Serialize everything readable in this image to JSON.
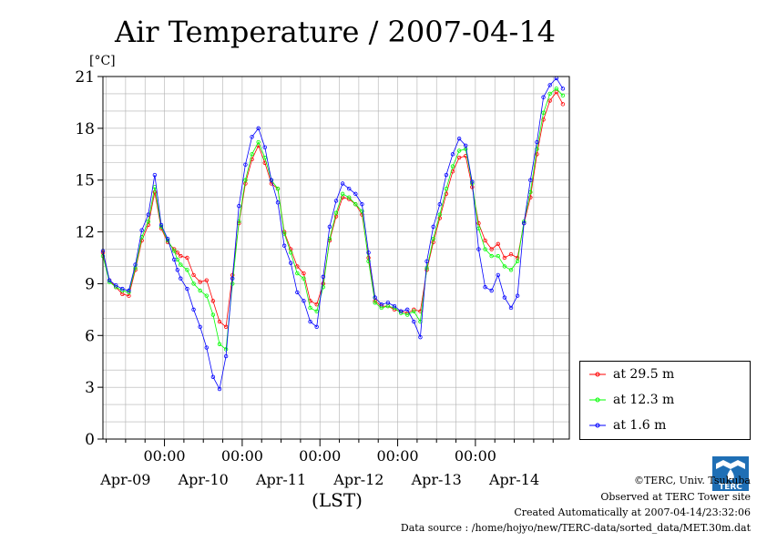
{
  "chart_data": {
    "type": "line",
    "title": "Air Temperature / 2007-04-14",
    "unit_label": "[°C]",
    "xlabel": "(LST)",
    "ylim": [
      0,
      21
    ],
    "yticks": [
      0,
      3,
      6,
      9,
      12,
      15,
      18,
      21
    ],
    "xlim_days": [
      "2007-04-08 05:00",
      "2007-04-14 05:00"
    ],
    "x_time_labels": [
      "00:00",
      "00:00",
      "00:00",
      "00:00",
      "00:00"
    ],
    "x_date_labels": [
      "Apr-09",
      "Apr-10",
      "Apr-11",
      "Apr-12",
      "Apr-13",
      "Apr-14"
    ],
    "grid": true,
    "legend_position": "right",
    "x_unit": "hours since 2007-04-08 05:00",
    "series": [
      {
        "name": "at 29.5 m",
        "color": "#ff0000",
        "x": [
          0,
          2,
          4,
          6,
          8,
          10,
          12,
          14,
          16,
          18,
          20,
          22,
          23,
          24,
          26,
          28,
          30,
          32,
          34,
          36,
          38,
          40,
          42,
          44,
          46,
          48,
          50,
          52,
          54,
          56,
          58,
          60,
          62,
          64,
          66,
          68,
          70,
          72,
          74,
          76,
          78,
          80,
          82,
          84,
          86,
          88,
          90,
          92,
          94,
          96,
          98,
          100,
          102,
          104,
          106,
          108,
          110,
          112,
          114,
          116,
          118,
          120,
          122,
          124,
          126,
          128,
          130,
          132,
          134,
          136,
          138,
          140,
          142
        ],
        "y": [
          10.8,
          9.2,
          8.8,
          8.4,
          8.3,
          9.8,
          11.5,
          12.4,
          14.3,
          12.2,
          11.4,
          11.0,
          10.8,
          10.6,
          10.5,
          9.5,
          9.1,
          9.2,
          8.0,
          6.8,
          6.5,
          9.5,
          12.5,
          14.8,
          16.2,
          17.0,
          16.0,
          14.8,
          14.5,
          12.0,
          11.0,
          10.0,
          9.6,
          8.0,
          7.8,
          9.0,
          11.5,
          12.9,
          14.0,
          13.9,
          13.6,
          13.0,
          10.5,
          8.0,
          7.7,
          7.7,
          7.5,
          7.4,
          7.3,
          7.5,
          7.4,
          9.8,
          11.4,
          12.8,
          14.2,
          15.5,
          16.3,
          16.4,
          14.6,
          12.5,
          11.5,
          11.0,
          11.3,
          10.5,
          10.7,
          10.5,
          12.5,
          14.0,
          16.5,
          18.5,
          19.6,
          20.1,
          19.4
        ]
      },
      {
        "name": "at 12.3 m",
        "color": "#00ff00",
        "x": [
          0,
          2,
          4,
          6,
          8,
          10,
          12,
          14,
          16,
          18,
          20,
          22,
          23,
          24,
          26,
          28,
          30,
          32,
          34,
          36,
          38,
          40,
          42,
          44,
          46,
          48,
          50,
          52,
          54,
          56,
          58,
          60,
          62,
          64,
          66,
          68,
          70,
          72,
          74,
          76,
          78,
          80,
          82,
          84,
          86,
          88,
          90,
          92,
          94,
          96,
          98,
          100,
          102,
          104,
          106,
          108,
          110,
          112,
          114,
          116,
          118,
          120,
          122,
          124,
          126,
          128,
          130,
          132,
          134,
          136,
          138,
          140,
          142
        ],
        "y": [
          10.6,
          9.1,
          8.8,
          8.6,
          8.5,
          9.9,
          11.7,
          12.6,
          14.6,
          12.3,
          11.5,
          10.9,
          10.4,
          10.1,
          9.8,
          9.0,
          8.6,
          8.3,
          7.2,
          5.5,
          5.2,
          9.0,
          12.6,
          15.0,
          16.5,
          17.2,
          16.3,
          15.0,
          14.5,
          11.9,
          10.8,
          9.6,
          9.3,
          7.6,
          7.4,
          8.8,
          11.6,
          13.1,
          14.2,
          14.0,
          13.6,
          13.2,
          10.3,
          7.9,
          7.6,
          7.7,
          7.6,
          7.3,
          7.2,
          7.4,
          6.8,
          9.9,
          11.6,
          13.0,
          14.5,
          15.8,
          16.7,
          16.8,
          14.8,
          12.2,
          11.0,
          10.6,
          10.6,
          10.0,
          9.8,
          10.3,
          12.6,
          14.3,
          16.8,
          18.9,
          20.0,
          20.3,
          19.9
        ]
      },
      {
        "name": "at 1.6 m",
        "color": "#0000ff",
        "x": [
          0,
          2,
          4,
          6,
          8,
          10,
          12,
          14,
          16,
          18,
          20,
          22,
          23,
          24,
          26,
          28,
          30,
          32,
          34,
          36,
          38,
          40,
          42,
          44,
          46,
          48,
          50,
          52,
          54,
          56,
          58,
          60,
          62,
          64,
          66,
          68,
          70,
          72,
          74,
          76,
          78,
          80,
          82,
          84,
          86,
          88,
          90,
          92,
          94,
          96,
          98,
          100,
          102,
          104,
          106,
          108,
          110,
          112,
          114,
          116,
          118,
          120,
          122,
          124,
          126,
          128,
          130,
          132,
          134,
          136,
          138,
          140,
          142
        ],
        "y": [
          10.9,
          9.2,
          8.9,
          8.7,
          8.6,
          10.1,
          12.1,
          13.0,
          15.3,
          12.4,
          11.6,
          10.4,
          9.8,
          9.3,
          8.7,
          7.5,
          6.5,
          5.3,
          3.6,
          2.9,
          4.8,
          9.3,
          13.5,
          15.9,
          17.5,
          18.0,
          16.9,
          15.0,
          13.7,
          11.2,
          10.2,
          8.5,
          8.0,
          6.8,
          6.5,
          9.4,
          12.3,
          13.8,
          14.8,
          14.5,
          14.2,
          13.6,
          10.8,
          8.2,
          7.8,
          7.9,
          7.7,
          7.4,
          7.5,
          6.8,
          5.9,
          10.3,
          12.3,
          13.6,
          15.3,
          16.5,
          17.4,
          17.0,
          14.9,
          11.0,
          8.8,
          8.6,
          9.5,
          8.2,
          7.6,
          8.3,
          12.5,
          15.0,
          17.2,
          19.8,
          20.5,
          20.9,
          20.3
        ]
      }
    ]
  },
  "credits": {
    "copyright": "©TERC, Univ. Tsukuba",
    "site": "Observed at TERC Tower site",
    "created": "Created Automatically at 2007-04-14/23:32:06",
    "source": "Data source : /home/hojyo/new/TERC-data/sorted_data/MET.30m.dat"
  },
  "logo": {
    "text": "TERC",
    "color": "#1f6fb5"
  }
}
